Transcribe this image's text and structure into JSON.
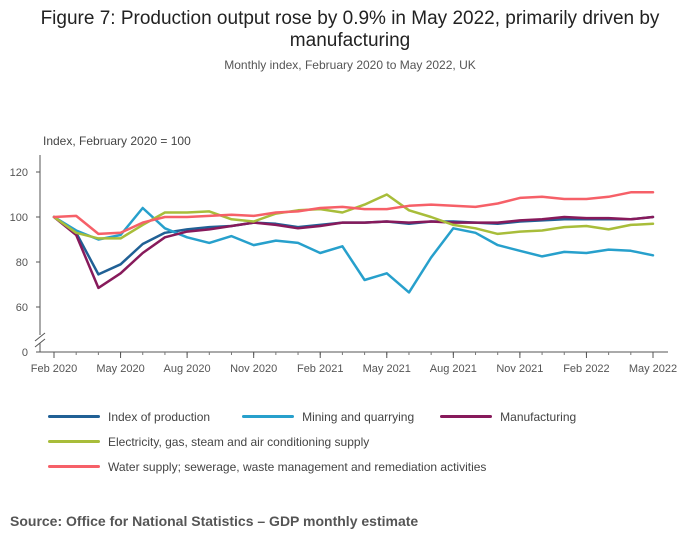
{
  "title": "Figure 7: Production output rose by 0.9% in May 2022, primarily driven by manufacturing",
  "subtitle": "Monthly index, February 2020 to May 2022, UK",
  "source": "Source: Office for National Statistics – GDP monthly estimate",
  "chart_data": {
    "type": "line",
    "title": "Figure 7: Production output rose by 0.9% in May 2022, primarily driven by manufacturing",
    "subtitle": "Monthly index, February 2020 to May 2022, UK",
    "ylabel": "Index, February 2020 = 100",
    "xlabel": "",
    "ylim": [
      0,
      130
    ],
    "y_ticks": [
      0,
      60,
      80,
      100,
      120
    ],
    "y_axis_break": true,
    "grid": false,
    "legend_position": "bottom",
    "x": [
      "Feb 2020",
      "Mar 2020",
      "Apr 2020",
      "May 2020",
      "Jun 2020",
      "Jul 2020",
      "Aug 2020",
      "Sep 2020",
      "Oct 2020",
      "Nov 2020",
      "Dec 2020",
      "Jan 2021",
      "Feb 2021",
      "Mar 2021",
      "Apr 2021",
      "May 2021",
      "Jun 2021",
      "Jul 2021",
      "Aug 2021",
      "Sep 2021",
      "Oct 2021",
      "Nov 2021",
      "Dec 2021",
      "Jan 2022",
      "Feb 2022",
      "Mar 2022",
      "Apr 2022",
      "May 2022"
    ],
    "x_tick_labels": [
      "Feb 2020",
      "May 2020",
      "Aug 2020",
      "Nov 2020",
      "Feb 2021",
      "May 2021",
      "Aug 2021",
      "Nov 2021",
      "Feb 2022",
      "May 2022"
    ],
    "series": [
      {
        "name": "Index of production",
        "color": "#206095",
        "values": [
          100,
          93,
          74.5,
          79,
          88,
          93,
          94.5,
          95.5,
          96,
          97.5,
          97,
          95.5,
          96.5,
          97.5,
          97.5,
          98,
          97,
          98,
          98,
          97.5,
          97,
          98,
          98.5,
          99,
          99,
          99,
          99,
          100
        ]
      },
      {
        "name": "Mining and quarrying",
        "color": "#27a0cc",
        "values": [
          100,
          94,
          90,
          92,
          104,
          95,
          91,
          88.5,
          91.5,
          87.5,
          89.5,
          88.5,
          84,
          87,
          72,
          75,
          66.5,
          82,
          95,
          93,
          87.5,
          85,
          82.5,
          84.5,
          84,
          85.5,
          85,
          83
        ]
      },
      {
        "name": "Manufacturing",
        "color": "#871a5b",
        "values": [
          100,
          92,
          68.5,
          75,
          84,
          91,
          93.5,
          94.5,
          96,
          97.5,
          96.5,
          95,
          96,
          97.5,
          97.5,
          98,
          97.5,
          98,
          97.5,
          97.5,
          97.5,
          98.5,
          99,
          100,
          99.5,
          99.5,
          99,
          100
        ]
      },
      {
        "name": "Electricity, gas, steam and air conditioning supply",
        "color": "#a8bd3a",
        "values": [
          100,
          93,
          90.5,
          90.5,
          96.5,
          102,
          102,
          102.5,
          99,
          98,
          101.5,
          103,
          103.5,
          102,
          105.5,
          110,
          103,
          100,
          96.5,
          95,
          92.5,
          93.5,
          94,
          95.5,
          96,
          94.5,
          96.5,
          97
        ]
      },
      {
        "name": "Water supply; sewerage, waste management and remediation activities",
        "color": "#f66068",
        "values": [
          100,
          100.5,
          92.5,
          93,
          97.5,
          100,
          100,
          100.5,
          101,
          100.5,
          102,
          102.5,
          104,
          104.5,
          103.5,
          103.5,
          105,
          105.5,
          105,
          104.5,
          106,
          108.5,
          109,
          108,
          108,
          109,
          111,
          111
        ]
      }
    ]
  }
}
